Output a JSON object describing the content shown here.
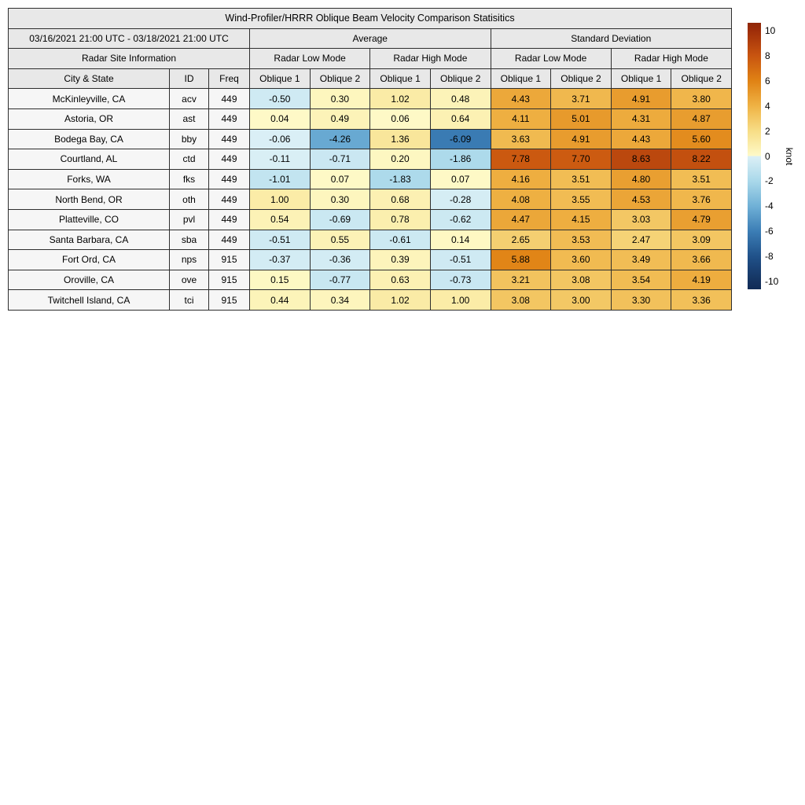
{
  "title": "Wind-Profiler/HRRR Oblique Beam Velocity Comparison Statisitics",
  "period": "03/16/2021 21:00 UTC - 03/18/2021 21:00 UTC",
  "groups": {
    "average": "Average",
    "std": "Standard Deviation",
    "site_info": "Radar Site Information",
    "low_mode": "Radar Low Mode",
    "high_mode": "Radar High Mode"
  },
  "columns": {
    "city": "City & State",
    "id": "ID",
    "freq": "Freq",
    "ob1": "Oblique 1",
    "ob2": "Oblique 2"
  },
  "colorbar": {
    "unit": "knot",
    "ticks": [
      10,
      8,
      6,
      4,
      2,
      0,
      -2,
      -4,
      -6,
      -8,
      -10
    ],
    "vmax": 10.6
  },
  "colors": {
    "header_bg": "#e8e8e8",
    "info_bg": "#f6f6f6",
    "border": "#2e2e2e",
    "colormap_positive": [
      [
        0,
        "#FEFAC8"
      ],
      [
        2,
        "#F7DD86"
      ],
      [
        4,
        "#EFB244"
      ],
      [
        6,
        "#E08214"
      ],
      [
        8,
        "#C85410"
      ],
      [
        10,
        "#9E2D09"
      ],
      [
        10.6,
        "#8F2707"
      ]
    ],
    "colormap_negative": [
      [
        0,
        "#DCF0F6"
      ],
      [
        2,
        "#A9D8EA"
      ],
      [
        4,
        "#6FB0D6"
      ],
      [
        6,
        "#3B7DB5"
      ],
      [
        8,
        "#205189"
      ],
      [
        10,
        "#14325F"
      ],
      [
        10.6,
        "#102B56"
      ]
    ]
  },
  "chart_data": {
    "type": "heatmap",
    "title": "Wind-Profiler/HRRR Oblique Beam Velocity Comparison Statisitics",
    "unit": "knot",
    "value_range": [
      -10,
      10
    ],
    "column_keys": [
      "avg_low_oblique1",
      "avg_low_oblique2",
      "avg_high_oblique1",
      "avg_high_oblique2",
      "std_low_oblique1",
      "std_low_oblique2",
      "std_high_oblique1",
      "std_high_oblique2"
    ],
    "rows": [
      {
        "city": "McKinleyville, CA",
        "id": "acv",
        "freq": "449",
        "values": [
          -0.5,
          0.3,
          1.02,
          0.48,
          4.43,
          3.71,
          4.91,
          3.8
        ]
      },
      {
        "city": "Astoria, OR",
        "id": "ast",
        "freq": "449",
        "values": [
          0.04,
          0.49,
          0.06,
          0.64,
          4.11,
          5.01,
          4.31,
          4.87
        ]
      },
      {
        "city": "Bodega Bay, CA",
        "id": "bby",
        "freq": "449",
        "values": [
          -0.06,
          -4.26,
          1.36,
          -6.09,
          3.63,
          4.91,
          4.43,
          5.6
        ]
      },
      {
        "city": "Courtland, AL",
        "id": "ctd",
        "freq": "449",
        "values": [
          -0.11,
          -0.71,
          0.2,
          -1.86,
          7.78,
          7.7,
          8.63,
          8.22
        ]
      },
      {
        "city": "Forks, WA",
        "id": "fks",
        "freq": "449",
        "values": [
          -1.01,
          0.07,
          -1.83,
          0.07,
          4.16,
          3.51,
          4.8,
          3.51
        ]
      },
      {
        "city": "North Bend, OR",
        "id": "oth",
        "freq": "449",
        "values": [
          1.0,
          0.3,
          0.68,
          -0.28,
          4.08,
          3.55,
          4.53,
          3.76
        ]
      },
      {
        "city": "Platteville, CO",
        "id": "pvl",
        "freq": "449",
        "values": [
          0.54,
          -0.69,
          0.78,
          -0.62,
          4.47,
          4.15,
          3.03,
          4.79
        ]
      },
      {
        "city": "Santa Barbara, CA",
        "id": "sba",
        "freq": "449",
        "values": [
          -0.51,
          0.55,
          -0.61,
          0.14,
          2.65,
          3.53,
          2.47,
          3.09
        ]
      },
      {
        "city": "Fort Ord, CA",
        "id": "nps",
        "freq": "915",
        "values": [
          -0.37,
          -0.36,
          0.39,
          -0.51,
          5.88,
          3.6,
          3.49,
          3.66
        ]
      },
      {
        "city": "Oroville, CA",
        "id": "ove",
        "freq": "915",
        "values": [
          0.15,
          -0.77,
          0.63,
          -0.73,
          3.21,
          3.08,
          3.54,
          4.19
        ]
      },
      {
        "city": "Twitchell Island, CA",
        "id": "tci",
        "freq": "915",
        "values": [
          0.44,
          0.34,
          1.02,
          1.0,
          3.08,
          3.0,
          3.3,
          3.36
        ]
      }
    ]
  }
}
